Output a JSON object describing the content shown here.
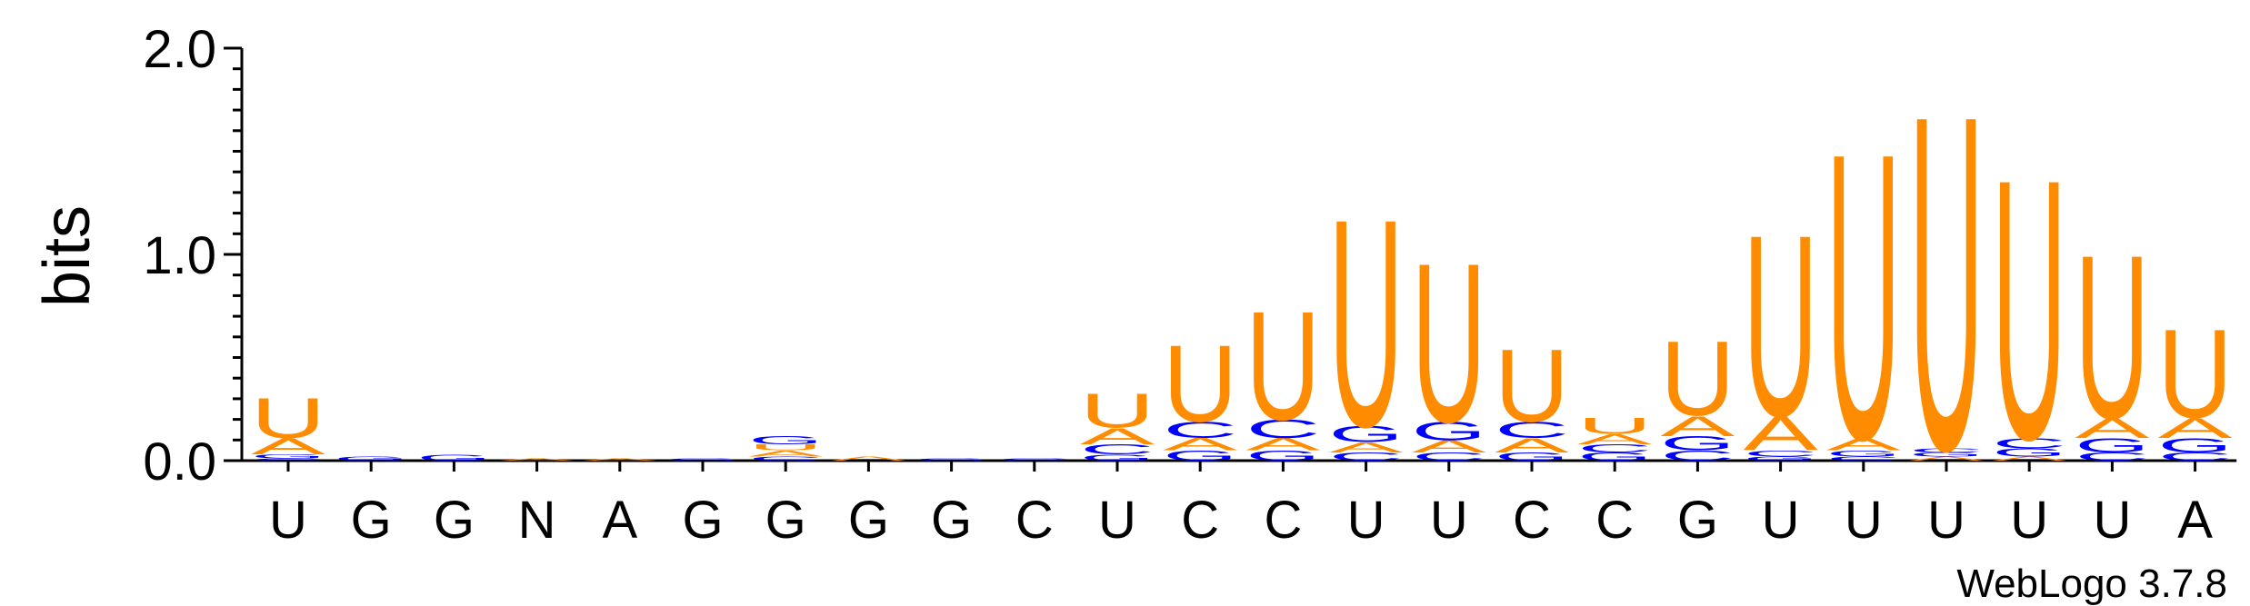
{
  "chart_data": {
    "type": "logo",
    "ylabel": "bits",
    "footer": "WebLogo 3.7.8",
    "ylim": [
      0,
      2.0
    ],
    "yticks": [
      {
        "value": 0,
        "label": "0.0"
      },
      {
        "value": 1.0,
        "label": "1.0"
      },
      {
        "value": 2.0,
        "label": "2.0"
      }
    ],
    "minor_yticks": [
      0.1,
      0.2,
      0.3,
      0.4,
      0.5,
      0.6,
      0.7,
      0.8,
      0.9,
      1.1,
      1.2,
      1.3,
      1.4,
      1.5,
      1.6,
      1.7,
      1.8,
      1.9
    ],
    "letter_colors": {
      "A": "#ff8c00",
      "U": "#ff8c00",
      "C": "#0000ff",
      "G": "#0000ff"
    },
    "categories": [
      "U",
      "G",
      "G",
      "N",
      "A",
      "G",
      "G",
      "G",
      "G",
      "C",
      "U",
      "C",
      "C",
      "U",
      "U",
      "C",
      "C",
      "G",
      "U",
      "U",
      "U",
      "U",
      "U",
      "A"
    ],
    "stacks": [
      [
        {
          "letter": "C",
          "bits": 0.01
        },
        {
          "letter": "G",
          "bits": 0.02
        },
        {
          "letter": "A",
          "bits": 0.08
        },
        {
          "letter": "U",
          "bits": 0.2
        }
      ],
      [
        {
          "letter": "G",
          "bits": 0.02
        }
      ],
      [
        {
          "letter": "G",
          "bits": 0.03
        }
      ],
      [
        {
          "letter": "A",
          "bits": 0.01
        }
      ],
      [
        {
          "letter": "A",
          "bits": 0.01
        }
      ],
      [
        {
          "letter": "G",
          "bits": 0.01
        }
      ],
      [
        {
          "letter": "C",
          "bits": 0.02
        },
        {
          "letter": "A",
          "bits": 0.03
        },
        {
          "letter": "U",
          "bits": 0.03
        },
        {
          "letter": "G",
          "bits": 0.04
        }
      ],
      [
        {
          "letter": "A",
          "bits": 0.02
        }
      ],
      [
        {
          "letter": "G",
          "bits": 0.01
        }
      ],
      [
        {
          "letter": "C",
          "bits": 0.01
        }
      ],
      [
        {
          "letter": "G",
          "bits": 0.03
        },
        {
          "letter": "C",
          "bits": 0.05
        },
        {
          "letter": "A",
          "bits": 0.08
        },
        {
          "letter": "U",
          "bits": 0.17
        }
      ],
      [
        {
          "letter": "G",
          "bits": 0.05
        },
        {
          "letter": "A",
          "bits": 0.06
        },
        {
          "letter": "C",
          "bits": 0.08
        },
        {
          "letter": "U",
          "bits": 0.38
        }
      ],
      [
        {
          "letter": "G",
          "bits": 0.05
        },
        {
          "letter": "A",
          "bits": 0.06
        },
        {
          "letter": "C",
          "bits": 0.09
        },
        {
          "letter": "U",
          "bits": 0.54
        }
      ],
      [
        {
          "letter": "C",
          "bits": 0.04
        },
        {
          "letter": "A",
          "bits": 0.05
        },
        {
          "letter": "G",
          "bits": 0.08
        },
        {
          "letter": "U",
          "bits": 1.03
        }
      ],
      [
        {
          "letter": "C",
          "bits": 0.04
        },
        {
          "letter": "A",
          "bits": 0.06
        },
        {
          "letter": "G",
          "bits": 0.09
        },
        {
          "letter": "U",
          "bits": 0.79
        }
      ],
      [
        {
          "letter": "G",
          "bits": 0.04
        },
        {
          "letter": "A",
          "bits": 0.07
        },
        {
          "letter": "C",
          "bits": 0.08
        },
        {
          "letter": "U",
          "bits": 0.36
        }
      ],
      [
        {
          "letter": "G",
          "bits": 0.04
        },
        {
          "letter": "C",
          "bits": 0.04
        },
        {
          "letter": "A",
          "bits": 0.05
        },
        {
          "letter": "U",
          "bits": 0.08
        }
      ],
      [
        {
          "letter": "C",
          "bits": 0.05
        },
        {
          "letter": "G",
          "bits": 0.07
        },
        {
          "letter": "A",
          "bits": 0.1
        },
        {
          "letter": "U",
          "bits": 0.37
        }
      ],
      [
        {
          "letter": "G",
          "bits": 0.02
        },
        {
          "letter": "C",
          "bits": 0.03
        },
        {
          "letter": "A",
          "bits": 0.17
        },
        {
          "letter": "U",
          "bits": 0.9
        }
      ],
      [
        {
          "letter": "C",
          "bits": 0.02
        },
        {
          "letter": "G",
          "bits": 0.03
        },
        {
          "letter": "A",
          "bits": 0.06
        },
        {
          "letter": "U",
          "bits": 1.42
        }
      ],
      [
        {
          "letter": "A",
          "bits": 0.02
        },
        {
          "letter": "G",
          "bits": 0.02
        },
        {
          "letter": "C",
          "bits": 0.02
        },
        {
          "letter": "U",
          "bits": 1.66
        }
      ],
      [
        {
          "letter": "A",
          "bits": 0.02
        },
        {
          "letter": "G",
          "bits": 0.04
        },
        {
          "letter": "C",
          "bits": 0.05
        },
        {
          "letter": "U",
          "bits": 1.29
        }
      ],
      [
        {
          "letter": "C",
          "bits": 0.04
        },
        {
          "letter": "G",
          "bits": 0.07
        },
        {
          "letter": "A",
          "bits": 0.1
        },
        {
          "letter": "U",
          "bits": 0.81
        }
      ],
      [
        {
          "letter": "C",
          "bits": 0.04
        },
        {
          "letter": "G",
          "bits": 0.07
        },
        {
          "letter": "A",
          "bits": 0.1
        },
        {
          "letter": "U",
          "bits": 0.44
        }
      ]
    ]
  }
}
